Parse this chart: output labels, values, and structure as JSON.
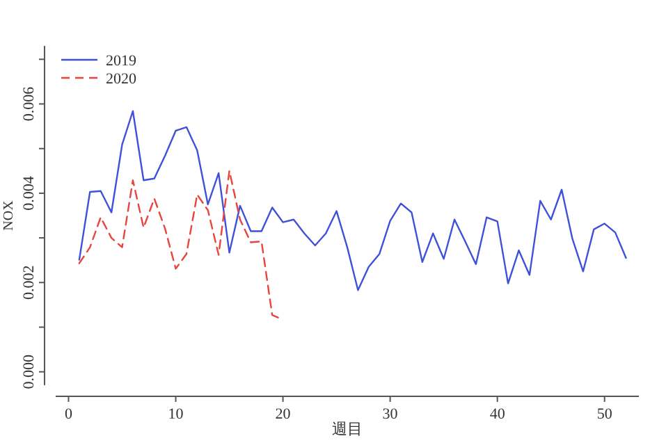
{
  "chart_data": {
    "type": "line",
    "xlabel": "週目",
    "ylabel": "NOX",
    "xlim": [
      -1.2,
      53.2
    ],
    "xticks": [
      0,
      10,
      20,
      30,
      40,
      50
    ],
    "ylim": [
      -0.0003,
      0.0073
    ],
    "yticks": [
      {
        "value": 0,
        "label": "0.000"
      },
      {
        "value": 0.001,
        "label": null
      },
      {
        "value": 0.002,
        "label": "0.002"
      },
      {
        "value": 0.003,
        "label": null
      },
      {
        "value": 0.004,
        "label": "0.004"
      },
      {
        "value": 0.005,
        "label": null
      },
      {
        "value": 0.006,
        "label": "0.006"
      },
      {
        "value": 0.007,
        "label": null
      }
    ],
    "grid": false,
    "legend": "top left",
    "marker": "none",
    "series": [
      {
        "name": "2019",
        "color": "#3f51d8",
        "line_style": "solid",
        "x": [
          1,
          2,
          3,
          4,
          5,
          6,
          7,
          8,
          9,
          10,
          11,
          12,
          13,
          14,
          15,
          16,
          17,
          18,
          19,
          20,
          21,
          22,
          23,
          24,
          25,
          26,
          27,
          28,
          29,
          30,
          31,
          32,
          33,
          34,
          35,
          36,
          37,
          38,
          39,
          40,
          41,
          42,
          43,
          44,
          45,
          46,
          47,
          48,
          49,
          50,
          51,
          52
        ],
        "values": [
          0.00251,
          0.00403,
          0.00405,
          0.00357,
          0.00509,
          0.00584,
          0.00429,
          0.00433,
          0.00484,
          0.0054,
          0.00548,
          0.00496,
          0.00375,
          0.00445,
          0.00267,
          0.00372,
          0.00315,
          0.00315,
          0.00368,
          0.00335,
          0.00341,
          0.0031,
          0.00283,
          0.0031,
          0.0036,
          0.00279,
          0.00183,
          0.00235,
          0.00264,
          0.00338,
          0.00377,
          0.00357,
          0.00246,
          0.0031,
          0.00253,
          0.00341,
          0.00292,
          0.00241,
          0.00346,
          0.00337,
          0.00198,
          0.00272,
          0.00217,
          0.00383,
          0.00341,
          0.00408,
          0.00298,
          0.00225,
          0.00319,
          0.00332,
          0.00312,
          0.00255
        ]
      },
      {
        "name": "2020",
        "color": "#e8453c",
        "line_style": "dashed",
        "x": [
          1,
          2,
          3,
          4,
          5,
          6,
          7,
          8,
          9,
          10,
          11,
          12,
          13,
          14,
          15,
          16,
          17,
          18,
          19,
          20
        ],
        "values": [
          0.00243,
          0.00279,
          0.00346,
          0.003,
          0.00279,
          0.00429,
          0.00323,
          0.00388,
          0.00321,
          0.00231,
          0.00264,
          0.00397,
          0.00362,
          0.00262,
          0.0045,
          0.00341,
          0.0029,
          0.00292,
          0.00127,
          0.00117
        ]
      }
    ]
  }
}
